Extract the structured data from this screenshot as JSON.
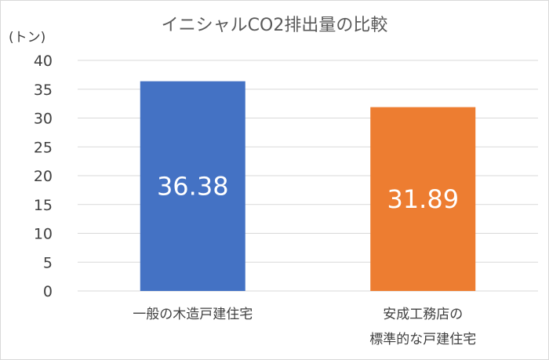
{
  "chart_data": {
    "type": "bar",
    "title": "イニシャルCO2排出量の比較",
    "ylabel": "(トン)",
    "xlabel": "",
    "ylim": [
      0,
      40
    ],
    "yticks": [
      0,
      5,
      10,
      15,
      20,
      25,
      30,
      35,
      40
    ],
    "grid": true,
    "legend": "none",
    "categories": [
      [
        "一般の木造戸建住宅"
      ],
      [
        "安成工務店の",
        "標準的な戸建住宅"
      ]
    ],
    "values": [
      36.38,
      31.89
    ],
    "data_labels": [
      "36.38",
      "31.89"
    ],
    "colors": [
      "#4472c4",
      "#ed7d31"
    ]
  }
}
